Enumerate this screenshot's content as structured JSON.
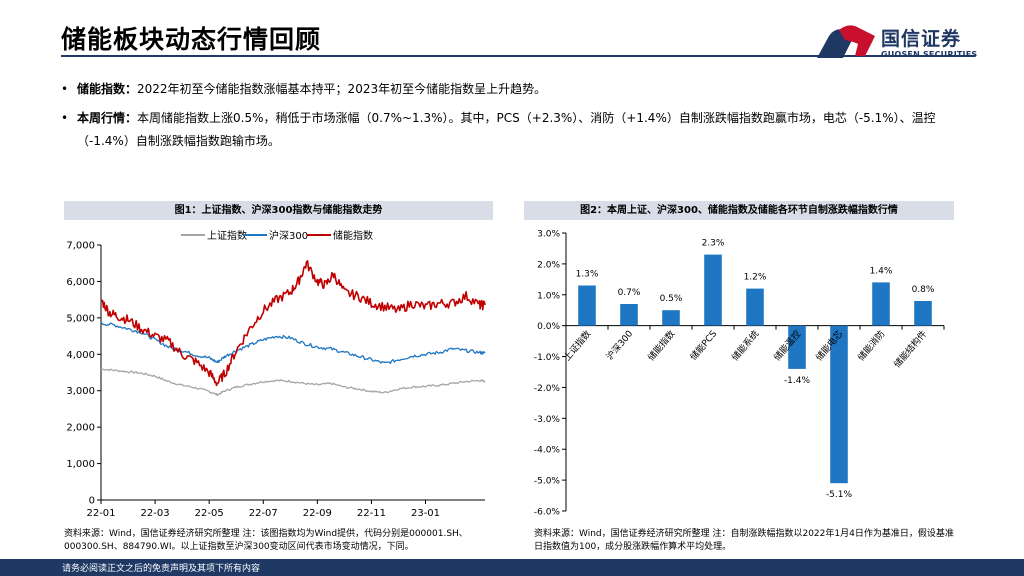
{
  "header": {
    "title": "储能板块动态行情回顾",
    "logo_cn": "国信证券",
    "logo_en": "GUOSEN SECURITIES"
  },
  "bullets": [
    {
      "marker": "•",
      "label": "储能指数：",
      "text": "2022年初至今储能指数涨幅基本持平；2023年初至今储能指数呈上升趋势。"
    },
    {
      "marker": "•",
      "label": "本周行情：",
      "text": "本周储能指数上涨0.5%，稍低于市场涨幅（0.7%~1.3%）。其中，PCS（+2.3%）、消防（+1.4%）自制涨跌幅指数跑赢市场，电芯（-5.1%）、温控（-1.4%）自制涨跌幅指数跑输市场。"
    }
  ],
  "chart1": {
    "heading": "图1：上证指数、沪深300指数与储能指数走势",
    "source": "资料来源：Wind，国信证券经济研究所整理  注：该图指数均为Wind提供，代码分别是000001.SH、000300.SH、884790.WI。以上证指数至沪深300变动区间代表市场变动情况，下同。"
  },
  "chart2": {
    "heading": "图2：本周上证、沪深300、储能指数及储能各环节自制涨跌幅指数行情",
    "source": "资料来源：Wind，国信证券经济研究所整理  注：自制涨跌幅指数以2022年1月4日作为基准日，假设基准日指数值为100，成分股涨跌幅作算术平均处理。"
  },
  "chart_data": [
    {
      "type": "line",
      "title": "图1：上证指数、沪深300指数与储能指数走势",
      "x_ticks": [
        "22-01",
        "22-03",
        "22-05",
        "22-07",
        "22-09",
        "22-11",
        "23-01"
      ],
      "y_ticks": [
        "0",
        "1,000",
        "2,000",
        "3,000",
        "4,000",
        "5,000",
        "6,000",
        "7,000"
      ],
      "ylim": [
        0,
        7000
      ],
      "xlim": [
        0,
        14.2
      ],
      "legend_position": "top",
      "grid": false,
      "series": [
        {
          "name": "上证指数",
          "color": "#a6a6a6",
          "x": [
            0,
            0.5,
            1,
            1.5,
            2,
            2.5,
            3,
            3.5,
            4,
            4.3,
            4.6,
            5,
            5.5,
            6,
            6.5,
            7,
            7.5,
            8,
            8.5,
            9,
            9.5,
            10,
            10.5,
            11,
            11.5,
            12,
            12.5,
            13,
            13.5,
            14,
            14.2
          ],
          "y": [
            3600,
            3560,
            3520,
            3480,
            3400,
            3250,
            3150,
            3080,
            2980,
            2890,
            3000,
            3100,
            3180,
            3250,
            3280,
            3260,
            3200,
            3160,
            3200,
            3100,
            3050,
            2980,
            2950,
            3050,
            3100,
            3120,
            3150,
            3200,
            3250,
            3280,
            3260
          ]
        },
        {
          "name": "沪深300",
          "color": "#1f77c4",
          "x": [
            0,
            0.5,
            1,
            1.5,
            2,
            2.5,
            3,
            3.5,
            4,
            4.3,
            4.6,
            5,
            5.5,
            6,
            6.5,
            7,
            7.5,
            8,
            8.5,
            9,
            9.5,
            10,
            10.5,
            11,
            11.5,
            12,
            12.5,
            13,
            13.5,
            14,
            14.2
          ],
          "y": [
            4850,
            4800,
            4700,
            4600,
            4400,
            4200,
            4100,
            3980,
            3900,
            3780,
            3950,
            4100,
            4250,
            4400,
            4500,
            4450,
            4300,
            4200,
            4150,
            4050,
            3950,
            3850,
            3750,
            3850,
            3950,
            4000,
            4050,
            4150,
            4100,
            4050,
            4030
          ]
        },
        {
          "name": "储能指数",
          "color": "#c00000",
          "x": [
            0,
            0.3,
            0.6,
            1,
            1.5,
            2,
            2.5,
            3,
            3.5,
            4,
            4.3,
            4.6,
            5,
            5.5,
            6,
            6.5,
            7,
            7.3,
            7.6,
            8,
            8.3,
            8.6,
            9,
            9.5,
            10,
            10.5,
            11,
            11.5,
            12,
            12.5,
            13,
            13.5,
            14,
            14.2
          ],
          "y": [
            5500,
            5150,
            5050,
            4950,
            4700,
            4500,
            4350,
            4000,
            3800,
            3500,
            3200,
            3500,
            4100,
            4700,
            5200,
            5500,
            5700,
            6000,
            6500,
            6000,
            5900,
            6200,
            5700,
            5600,
            5400,
            5300,
            5200,
            5400,
            5300,
            5400,
            5400,
            5600,
            5350,
            5350
          ]
        }
      ]
    },
    {
      "type": "bar",
      "title": "图2：本周上证、沪深300、储能指数及储能各环节自制涨跌幅指数行情",
      "categories": [
        "上证指数",
        "沪深300",
        "储能指数",
        "储能PCS",
        "储能系统",
        "储能温控",
        "储能电芯",
        "储能消防",
        "储能结构件"
      ],
      "values": [
        1.3,
        0.7,
        0.5,
        2.3,
        1.2,
        -1.4,
        -5.1,
        1.4,
        0.8
      ],
      "labels": [
        "1.3%",
        "0.7%",
        "0.5%",
        "2.3%",
        "1.2%",
        "-1.4%",
        "-5.1%",
        "1.4%",
        "0.8%"
      ],
      "y_ticks": [
        "3.0%",
        "2.0%",
        "1.0%",
        "0.0%",
        "-1.0%",
        "-2.0%",
        "-3.0%",
        "-4.0%",
        "-5.0%",
        "-6.0%"
      ],
      "ylim": [
        -6.0,
        3.0
      ],
      "bar_color": "#1f77c4",
      "grid": false
    }
  ],
  "footer": {
    "disclaimer": "请务必阅读正文之后的免责声明及其项下所有内容"
  }
}
